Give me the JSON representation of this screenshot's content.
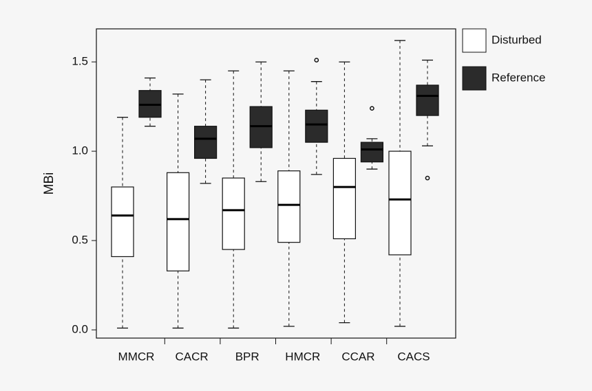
{
  "chart_data": {
    "type": "box",
    "ylabel": "MBi",
    "categories": [
      "MMCR",
      "CACR",
      "BPR",
      "HMCR",
      "CCAR",
      "CACS"
    ],
    "ylim": [
      -0.046,
      1.685
    ],
    "yticks": [
      {
        "value": 0,
        "label": "0.0"
      },
      {
        "value": 0.5,
        "label": "0.5"
      },
      {
        "value": 1,
        "label": "1.0"
      },
      {
        "value": 1.5,
        "label": "1.5"
      }
    ],
    "legend": "right",
    "series": [
      {
        "name": "Disturbed",
        "color": "#ffffff",
        "min": [
          0.01,
          0.01,
          0.01,
          0.02,
          0.04,
          0.02
        ],
        "q1": [
          0.41,
          0.33,
          0.45,
          0.49,
          0.51,
          0.42
        ],
        "median": [
          0.64,
          0.62,
          0.67,
          0.7,
          0.8,
          0.73
        ],
        "q3": [
          0.8,
          0.88,
          0.85,
          0.89,
          0.96,
          1.0
        ],
        "max": [
          1.19,
          1.32,
          1.45,
          1.45,
          1.5,
          1.62
        ],
        "outliers": [
          [],
          [],
          [],
          [],
          [],
          []
        ]
      },
      {
        "name": "Reference",
        "color": "#2b2b2b",
        "min": [
          1.14,
          0.82,
          0.83,
          0.87,
          0.9,
          1.03
        ],
        "q1": [
          1.19,
          0.96,
          1.02,
          1.05,
          0.94,
          1.2
        ],
        "median": [
          1.26,
          1.07,
          1.14,
          1.15,
          1.01,
          1.31
        ],
        "q3": [
          1.34,
          1.14,
          1.25,
          1.23,
          1.05,
          1.37
        ],
        "max": [
          1.41,
          1.4,
          1.5,
          1.39,
          1.07,
          1.51
        ],
        "outliers": [
          [],
          [],
          [],
          [
            1.51
          ],
          [
            1.24
          ],
          [
            0.85
          ]
        ]
      }
    ]
  }
}
